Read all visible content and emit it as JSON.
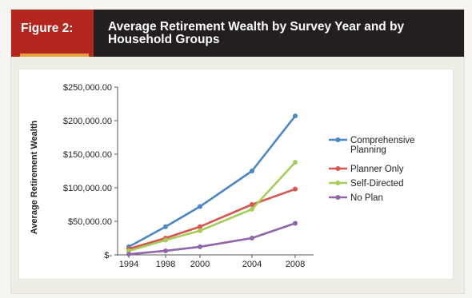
{
  "header": {
    "figure_label": "Figure 2:",
    "title": "Average Retirement Wealth by Survey Year and by Household Groups"
  },
  "chart_data": {
    "type": "line",
    "title": "Average Retirement Wealth by Survey Year and by Household Groups",
    "xlabel": "",
    "ylabel": "Average Retirement Wealth",
    "categories": [
      "1994",
      "1998",
      "2000",
      "2004",
      "2008"
    ],
    "y_tick_labels": [
      "$-",
      "$50,000.00",
      "$100,000.00",
      "$150,000.00",
      "$200,000.00",
      "$250,000.00"
    ],
    "ylim": [
      0,
      250000
    ],
    "grid": false,
    "legend_position": "right",
    "series": [
      {
        "name": "Comprehensive Planning",
        "color": "#4a86c6",
        "values": [
          12000,
          42000,
          72000,
          125000,
          207000
        ]
      },
      {
        "name": "Planner Only",
        "color": "#d9534f",
        "values": [
          9000,
          25000,
          42000,
          75000,
          98000
        ]
      },
      {
        "name": "Self-Directed",
        "color": "#a6cd57",
        "values": [
          6000,
          22000,
          36000,
          68000,
          138000
        ]
      },
      {
        "name": "No Plan",
        "color": "#9165a9",
        "values": [
          1000,
          6000,
          12000,
          25000,
          47000
        ]
      }
    ]
  }
}
